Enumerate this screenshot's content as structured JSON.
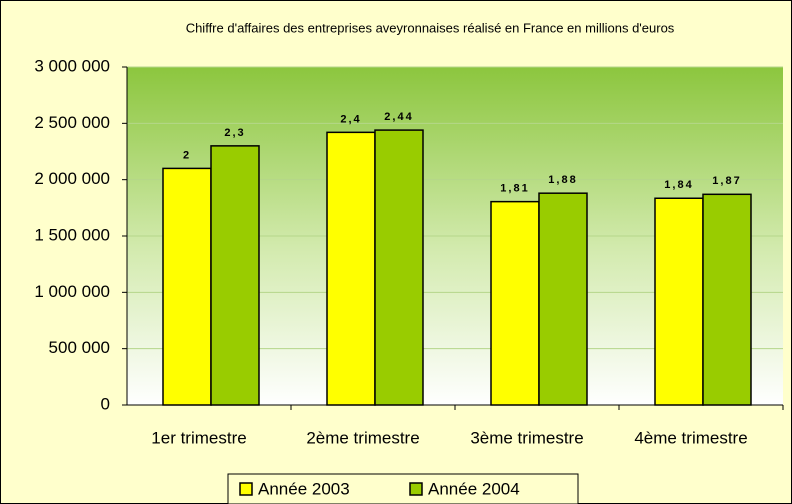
{
  "chart_data": {
    "type": "bar",
    "title": "Chiffre d'affaires des entreprises aveyronnaises réalisé en France en millions d'euros",
    "categories": [
      "1er trimestre",
      "2ème trimestre",
      "3ème trimestre",
      "4ème trimestre"
    ],
    "series": [
      {
        "name": "Année 2003",
        "color": "#ffff00",
        "values": [
          2100000,
          2420000,
          1805000,
          1835000
        ],
        "value_labels": [
          "2",
          "2,4",
          "1,81",
          "1,84"
        ]
      },
      {
        "name": "Année 2004",
        "color": "#99cc00",
        "values": [
          2300000,
          2440000,
          1880000,
          1870000
        ],
        "value_labels": [
          "2,3",
          "2,44",
          "1,88",
          "1,87"
        ]
      }
    ],
    "ylim": [
      0,
      3000000
    ],
    "yticks": [
      0,
      {
        "value": 500000,
        "label": "500 000"
      },
      {
        "value": 1000000,
        "label": "1 000 000"
      },
      {
        "value": 1500000,
        "label": "1 500 000"
      },
      {
        "value": 2000000,
        "label": "2 000 000"
      },
      {
        "value": 2500000,
        "label": "2 500 000"
      },
      {
        "value": 3000000,
        "label": "3 000 000"
      }
    ],
    "grid": true,
    "legend": "bottom"
  }
}
